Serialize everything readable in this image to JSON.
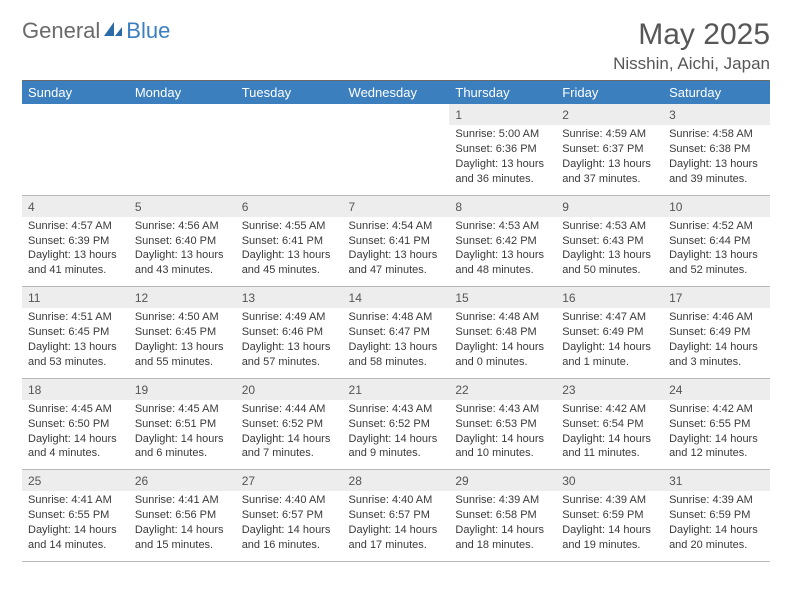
{
  "logo": {
    "part1": "General",
    "part2": "Blue"
  },
  "title": "May 2025",
  "location": "Nisshin, Aichi, Japan",
  "colors": {
    "header_bg": "#3b7fbf",
    "header_fg": "#ffffff",
    "daynum_bg": "#ededed",
    "text": "#3a3a3a",
    "rule": "#6a6a6a"
  },
  "dayHeaders": [
    "Sunday",
    "Monday",
    "Tuesday",
    "Wednesday",
    "Thursday",
    "Friday",
    "Saturday"
  ],
  "weeks": [
    [
      null,
      null,
      null,
      null,
      {
        "d": "1",
        "sunrise": "5:00 AM",
        "sunset": "6:36 PM",
        "dl1": "Daylight: 13 hours",
        "dl2": "and 36 minutes."
      },
      {
        "d": "2",
        "sunrise": "4:59 AM",
        "sunset": "6:37 PM",
        "dl1": "Daylight: 13 hours",
        "dl2": "and 37 minutes."
      },
      {
        "d": "3",
        "sunrise": "4:58 AM",
        "sunset": "6:38 PM",
        "dl1": "Daylight: 13 hours",
        "dl2": "and 39 minutes."
      }
    ],
    [
      {
        "d": "4",
        "sunrise": "4:57 AM",
        "sunset": "6:39 PM",
        "dl1": "Daylight: 13 hours",
        "dl2": "and 41 minutes."
      },
      {
        "d": "5",
        "sunrise": "4:56 AM",
        "sunset": "6:40 PM",
        "dl1": "Daylight: 13 hours",
        "dl2": "and 43 minutes."
      },
      {
        "d": "6",
        "sunrise": "4:55 AM",
        "sunset": "6:41 PM",
        "dl1": "Daylight: 13 hours",
        "dl2": "and 45 minutes."
      },
      {
        "d": "7",
        "sunrise": "4:54 AM",
        "sunset": "6:41 PM",
        "dl1": "Daylight: 13 hours",
        "dl2": "and 47 minutes."
      },
      {
        "d": "8",
        "sunrise": "4:53 AM",
        "sunset": "6:42 PM",
        "dl1": "Daylight: 13 hours",
        "dl2": "and 48 minutes."
      },
      {
        "d": "9",
        "sunrise": "4:53 AM",
        "sunset": "6:43 PM",
        "dl1": "Daylight: 13 hours",
        "dl2": "and 50 minutes."
      },
      {
        "d": "10",
        "sunrise": "4:52 AM",
        "sunset": "6:44 PM",
        "dl1": "Daylight: 13 hours",
        "dl2": "and 52 minutes."
      }
    ],
    [
      {
        "d": "11",
        "sunrise": "4:51 AM",
        "sunset": "6:45 PM",
        "dl1": "Daylight: 13 hours",
        "dl2": "and 53 minutes."
      },
      {
        "d": "12",
        "sunrise": "4:50 AM",
        "sunset": "6:45 PM",
        "dl1": "Daylight: 13 hours",
        "dl2": "and 55 minutes."
      },
      {
        "d": "13",
        "sunrise": "4:49 AM",
        "sunset": "6:46 PM",
        "dl1": "Daylight: 13 hours",
        "dl2": "and 57 minutes."
      },
      {
        "d": "14",
        "sunrise": "4:48 AM",
        "sunset": "6:47 PM",
        "dl1": "Daylight: 13 hours",
        "dl2": "and 58 minutes."
      },
      {
        "d": "15",
        "sunrise": "4:48 AM",
        "sunset": "6:48 PM",
        "dl1": "Daylight: 14 hours",
        "dl2": "and 0 minutes."
      },
      {
        "d": "16",
        "sunrise": "4:47 AM",
        "sunset": "6:49 PM",
        "dl1": "Daylight: 14 hours",
        "dl2": "and 1 minute."
      },
      {
        "d": "17",
        "sunrise": "4:46 AM",
        "sunset": "6:49 PM",
        "dl1": "Daylight: 14 hours",
        "dl2": "and 3 minutes."
      }
    ],
    [
      {
        "d": "18",
        "sunrise": "4:45 AM",
        "sunset": "6:50 PM",
        "dl1": "Daylight: 14 hours",
        "dl2": "and 4 minutes."
      },
      {
        "d": "19",
        "sunrise": "4:45 AM",
        "sunset": "6:51 PM",
        "dl1": "Daylight: 14 hours",
        "dl2": "and 6 minutes."
      },
      {
        "d": "20",
        "sunrise": "4:44 AM",
        "sunset": "6:52 PM",
        "dl1": "Daylight: 14 hours",
        "dl2": "and 7 minutes."
      },
      {
        "d": "21",
        "sunrise": "4:43 AM",
        "sunset": "6:52 PM",
        "dl1": "Daylight: 14 hours",
        "dl2": "and 9 minutes."
      },
      {
        "d": "22",
        "sunrise": "4:43 AM",
        "sunset": "6:53 PM",
        "dl1": "Daylight: 14 hours",
        "dl2": "and 10 minutes."
      },
      {
        "d": "23",
        "sunrise": "4:42 AM",
        "sunset": "6:54 PM",
        "dl1": "Daylight: 14 hours",
        "dl2": "and 11 minutes."
      },
      {
        "d": "24",
        "sunrise": "4:42 AM",
        "sunset": "6:55 PM",
        "dl1": "Daylight: 14 hours",
        "dl2": "and 12 minutes."
      }
    ],
    [
      {
        "d": "25",
        "sunrise": "4:41 AM",
        "sunset": "6:55 PM",
        "dl1": "Daylight: 14 hours",
        "dl2": "and 14 minutes."
      },
      {
        "d": "26",
        "sunrise": "4:41 AM",
        "sunset": "6:56 PM",
        "dl1": "Daylight: 14 hours",
        "dl2": "and 15 minutes."
      },
      {
        "d": "27",
        "sunrise": "4:40 AM",
        "sunset": "6:57 PM",
        "dl1": "Daylight: 14 hours",
        "dl2": "and 16 minutes."
      },
      {
        "d": "28",
        "sunrise": "4:40 AM",
        "sunset": "6:57 PM",
        "dl1": "Daylight: 14 hours",
        "dl2": "and 17 minutes."
      },
      {
        "d": "29",
        "sunrise": "4:39 AM",
        "sunset": "6:58 PM",
        "dl1": "Daylight: 14 hours",
        "dl2": "and 18 minutes."
      },
      {
        "d": "30",
        "sunrise": "4:39 AM",
        "sunset": "6:59 PM",
        "dl1": "Daylight: 14 hours",
        "dl2": "and 19 minutes."
      },
      {
        "d": "31",
        "sunrise": "4:39 AM",
        "sunset": "6:59 PM",
        "dl1": "Daylight: 14 hours",
        "dl2": "and 20 minutes."
      }
    ]
  ],
  "labels": {
    "sunrise": "Sunrise: ",
    "sunset": "Sunset: "
  }
}
